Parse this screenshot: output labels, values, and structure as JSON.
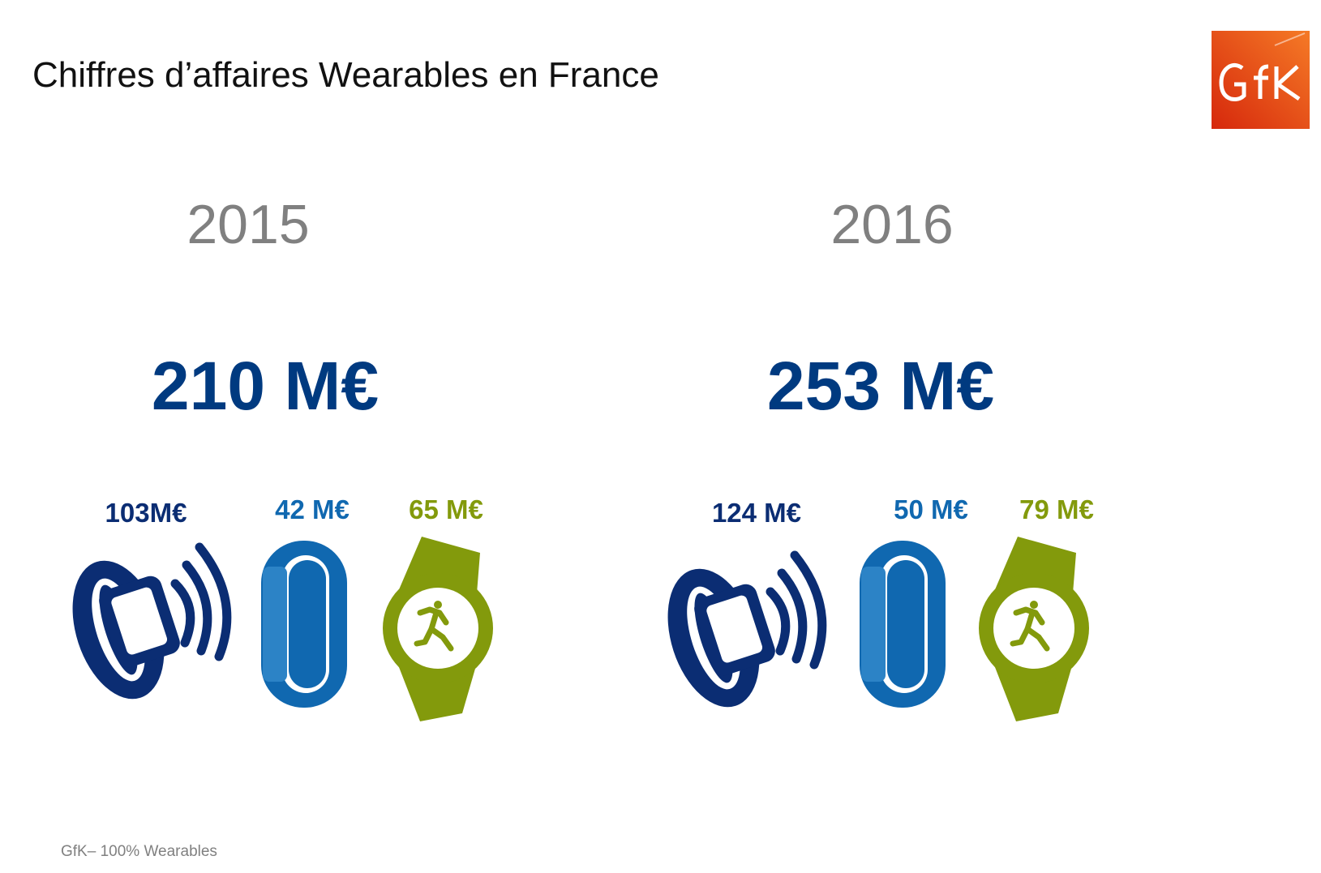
{
  "title": "Chiffres d’affaires Wearables en France",
  "logo": {
    "text": "GfK",
    "colors": [
      "#e0340f",
      "#f26c21"
    ]
  },
  "colors": {
    "smartwatch": "#0b2d73",
    "wristband": "#1068b0",
    "sport_watch": "#839a0c",
    "total": "#003a80",
    "year": "#808080"
  },
  "years": [
    {
      "year": "2015",
      "total": "210 M€",
      "segments": {
        "smartwatch": "103M€",
        "wristband": "42 M€",
        "sport_watch": "65 M€"
      }
    },
    {
      "year": "2016",
      "total": "253 M€",
      "segments": {
        "smartwatch": "124 M€",
        "wristband": "50 M€",
        "sport_watch": "79 M€"
      }
    }
  ],
  "icons": [
    "smartwatch-icon",
    "wristband-icon",
    "sport-watch-icon"
  ],
  "source": "GfK– 100% Wearables"
}
